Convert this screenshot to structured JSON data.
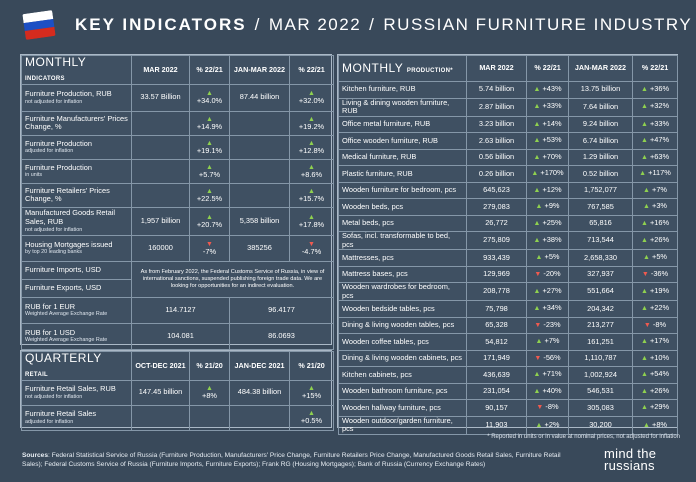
{
  "header": {
    "title_bold": "KEY INDICATORS",
    "sep": "/",
    "period": "MAR 2022",
    "subject": "RUSSIAN FURNITURE INDUSTRY"
  },
  "colors": {
    "up": "#8fd14f",
    "down": "#f05a4f",
    "background": "#39495a"
  },
  "monthly_indicators": {
    "title_main": "MONTHLY",
    "title_small": "INDICATORS",
    "col1": "MAR 2022",
    "col2": "% 22/21",
    "col3": "JAN-MAR 2022",
    "col4": "% 22/21",
    "rows": [
      {
        "label": "Furniture Production, RUB",
        "sub": "not adjusted for inflation",
        "v1": "33.57 Billion",
        "d1": "up",
        "p1": "+34.0%",
        "v2": "87.44 billion",
        "d2": "up",
        "p2": "+32.0%"
      },
      {
        "label": "Furniture Manufacturers' Prices Change, %",
        "sub": "",
        "v1": "",
        "d1": "up",
        "p1": "+14.9%",
        "v2": "",
        "d2": "up",
        "p2": "+19.2%"
      },
      {
        "label": "Furniture Production",
        "sub": "adjusted for inflation",
        "v1": "",
        "d1": "up",
        "p1": "+19.1%",
        "v2": "",
        "d2": "up",
        "p2": "+12.8%"
      },
      {
        "label": "Furniture Production",
        "sub": "in units",
        "v1": "",
        "d1": "up",
        "p1": "+5.7%",
        "v2": "",
        "d2": "up",
        "p2": "+8.6%"
      },
      {
        "label": "Furniture Retailers' Prices Change, %",
        "sub": "",
        "v1": "",
        "d1": "up",
        "p1": "+22.5%",
        "v2": "",
        "d2": "up",
        "p2": "+15.7%"
      },
      {
        "label": "Manufactured Goods Retail Sales, RUB",
        "sub": "not adjusted for inflation",
        "v1": "1,957 billion",
        "d1": "up",
        "p1": "+20.7%",
        "v2": "5,358 billion",
        "d2": "up",
        "p2": "+17.8%"
      },
      {
        "label": "Housing Mortgages issued",
        "sub": "by top 20 leading banks",
        "v1": "160000",
        "d1": "down",
        "p1": "-7%",
        "v2": "385256",
        "d2": "down",
        "p2": "-4.7%"
      }
    ],
    "imports_label": "Furniture Imports, USD",
    "exports_label": "Furniture Exports, USD",
    "customs_note": "As from February 2022, the Federal Customs Service of Russia, in view of international sanctions, suspended publishing foreign trade data. We are looking for opportunities for an indirect evaluation.",
    "eur_label": "RUB for 1 EUR",
    "eur_sub": "Weighted Average Exchange Rate",
    "eur_v1": "114.7127",
    "eur_v2": "96.4177",
    "usd_label": "RUB for 1 USD",
    "usd_sub": "Weighted Average Exchange Rate",
    "usd_v1": "104.081",
    "usd_v2": "86.0693"
  },
  "quarterly_retail": {
    "title_main": "QUARTERLY",
    "title_small": "RETAIL",
    "col1": "OCT-DEC 2021",
    "col2": "% 21/20",
    "col3": "JAN-DEC 2021",
    "col4": "% 21/20",
    "rows": [
      {
        "label": "Furniture Retail Sales, RUB",
        "sub": "not adjusted for inflation",
        "v1": "147.45 billion",
        "d1": "up",
        "p1": "+8%",
        "v2": "484.38 billion",
        "d2": "up",
        "p2": "+15%"
      },
      {
        "label": "Furniture Retail Sales",
        "sub": "adjusted for inflation",
        "v1": "",
        "d1": "",
        "p1": "",
        "v2": "",
        "d2": "up",
        "p2": "+0.5%"
      }
    ]
  },
  "monthly_production": {
    "title_main": "MONTHLY",
    "title_small": "PRODUCTION*",
    "col1": "MAR 2022",
    "col2": "% 22/21",
    "col3": "JAN-MAR 2022",
    "col4": "% 22/21",
    "rows": [
      {
        "label": "Kitchen furniture, RUB",
        "v1": "5.74 billion",
        "d1": "up",
        "p1": "+43%",
        "v2": "13.75 billion",
        "d2": "up",
        "p2": "+36%"
      },
      {
        "label": "Living & dining wooden furniture, RUB",
        "v1": "2.87 billion",
        "d1": "up",
        "p1": "+33%",
        "v2": "7.64 billion",
        "d2": "up",
        "p2": "+32%"
      },
      {
        "label": "Office metal furniture, RUB",
        "v1": "3.23 billion",
        "d1": "up",
        "p1": "+14%",
        "v2": "9.24 billion",
        "d2": "up",
        "p2": "+33%"
      },
      {
        "label": "Office wooden furniture, RUB",
        "v1": "2.63 billion",
        "d1": "up",
        "p1": "+53%",
        "v2": "6.74 billion",
        "d2": "up",
        "p2": "+47%"
      },
      {
        "label": "Medical furniture, RUB",
        "v1": "0.56 billion",
        "d1": "up",
        "p1": "+70%",
        "v2": "1.29 billion",
        "d2": "up",
        "p2": "+63%"
      },
      {
        "label": "Plastic furniture, RUB",
        "v1": "0.26 billion",
        "d1": "up",
        "p1": "+170%",
        "v2": "0.52 billion",
        "d2": "up",
        "p2": "+117%"
      },
      {
        "label": "Wooden furniture for bedroom, pcs",
        "v1": "645,623",
        "d1": "up",
        "p1": "+12%",
        "v2": "1,752,077",
        "d2": "up",
        "p2": "+7%"
      },
      {
        "label": "Wooden beds, pcs",
        "v1": "279,083",
        "d1": "up",
        "p1": "+9%",
        "v2": "767,585",
        "d2": "up",
        "p2": "+3%"
      },
      {
        "label": "Metal beds, pcs",
        "v1": "26,772",
        "d1": "up",
        "p1": "+25%",
        "v2": "65,816",
        "d2": "up",
        "p2": "+16%"
      },
      {
        "label": "Sofas, incl. transformable to bed, pcs",
        "v1": "275,809",
        "d1": "up",
        "p1": "+38%",
        "v2": "713,544",
        "d2": "up",
        "p2": "+26%"
      },
      {
        "label": "Mattresses, pcs",
        "v1": "933,439",
        "d1": "up",
        "p1": "+5%",
        "v2": "2,658,330",
        "d2": "up",
        "p2": "+5%"
      },
      {
        "label": "Mattress bases, pcs",
        "v1": "129,969",
        "d1": "down",
        "p1": "-20%",
        "v2": "327,937",
        "d2": "down",
        "p2": "-36%"
      },
      {
        "label": "Wooden wardrobes for bedroom, pcs",
        "v1": "208,778",
        "d1": "up",
        "p1": "+27%",
        "v2": "551,664",
        "d2": "up",
        "p2": "+19%"
      },
      {
        "label": "Wooden bedside tables, pcs",
        "v1": "75,798",
        "d1": "up",
        "p1": "+34%",
        "v2": "204,342",
        "d2": "up",
        "p2": "+22%"
      },
      {
        "label": "Dining & living wooden tables, pcs",
        "v1": "65,328",
        "d1": "down",
        "p1": "-23%",
        "v2": "213,277",
        "d2": "down",
        "p2": "-8%"
      },
      {
        "label": "Wooden coffee tables, pcs",
        "v1": "54,812",
        "d1": "up",
        "p1": "+7%",
        "v2": "161,251",
        "d2": "up",
        "p2": "+17%"
      },
      {
        "label": "Dining & living wooden cabinets, pcs",
        "v1": "171,949",
        "d1": "down",
        "p1": "-56%",
        "v2": "1,110,787",
        "d2": "up",
        "p2": "+10%"
      },
      {
        "label": "Kitchen cabinets, pcs",
        "v1": "436,639",
        "d1": "up",
        "p1": "+71%",
        "v2": "1,002,924",
        "d2": "up",
        "p2": "+54%"
      },
      {
        "label": "Wooden bathroom furniture, pcs",
        "v1": "231,054",
        "d1": "up",
        "p1": "+40%",
        "v2": "546,531",
        "d2": "up",
        "p2": "+26%"
      },
      {
        "label": "Wooden hallway furniture, pcs",
        "v1": "90,157",
        "d1": "down",
        "p1": "-8%",
        "v2": "305,083",
        "d2": "up",
        "p2": "+29%"
      },
      {
        "label": "Wooden outdoor/garden furniture, pcs",
        "v1": "11,903",
        "d1": "up",
        "p1": "+2%",
        "v2": "30,200",
        "d2": "up",
        "p2": "+8%"
      }
    ]
  },
  "footnote": "* Reported in units or in value at nominal prices, not adjusted for inflation",
  "sources": {
    "label": "Sources",
    "text": ": Federal Statistical Service of Russia (Furniture Production, Manufacturers' Price Change, Furniture Retailers Price Change, Manufactured Goods Retail Sales, Furniture Retail Sales); Federal Customs Service of Russia (Furniture Imports, Furniture Exports); Frank RG (Housing Mortgages); Bank of Russia (Currency Exchange Rates)"
  },
  "logo": {
    "line1": "mind the",
    "line2": "russians"
  }
}
